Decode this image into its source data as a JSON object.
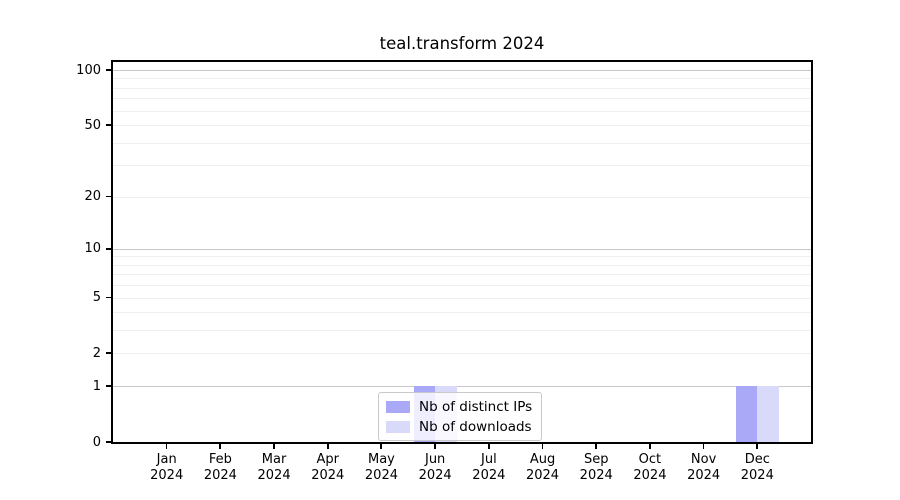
{
  "title": "teal.transform 2024",
  "chart_data": {
    "type": "bar",
    "title": "teal.transform 2024",
    "categories": [
      {
        "month": "Jan",
        "year": "2024"
      },
      {
        "month": "Feb",
        "year": "2024"
      },
      {
        "month": "Mar",
        "year": "2024"
      },
      {
        "month": "Apr",
        "year": "2024"
      },
      {
        "month": "May",
        "year": "2024"
      },
      {
        "month": "Jun",
        "year": "2024"
      },
      {
        "month": "Jul",
        "year": "2024"
      },
      {
        "month": "Aug",
        "year": "2024"
      },
      {
        "month": "Sep",
        "year": "2024"
      },
      {
        "month": "Oct",
        "year": "2024"
      },
      {
        "month": "Nov",
        "year": "2024"
      },
      {
        "month": "Dec",
        "year": "2024"
      }
    ],
    "series": [
      {
        "name": "Nb of distinct IPs",
        "color": "#a9a9f7",
        "values": [
          0,
          0,
          0,
          0,
          0,
          1,
          0,
          0,
          0,
          0,
          0,
          1
        ]
      },
      {
        "name": "Nb of downloads",
        "color": "#d9d9f9",
        "values": [
          0,
          0,
          0,
          0,
          0,
          1,
          0,
          0,
          0,
          0,
          0,
          1
        ]
      }
    ],
    "yticks": [
      0,
      1,
      2,
      5,
      10,
      20,
      50,
      100
    ],
    "ylim": [
      0,
      100
    ],
    "scale": "log1p",
    "grid": true,
    "grid_major_values": [
      1,
      10,
      100
    ],
    "grid_minor_values": [
      2,
      3,
      4,
      5,
      6,
      7,
      8,
      9,
      20,
      30,
      40,
      50,
      60,
      70,
      80,
      90
    ],
    "legend_position": "bottom-center",
    "colors": {
      "spine": "#000000",
      "grid_major": "#c8c8c8",
      "grid_minor": "#efefef",
      "background": "#ffffff"
    }
  }
}
